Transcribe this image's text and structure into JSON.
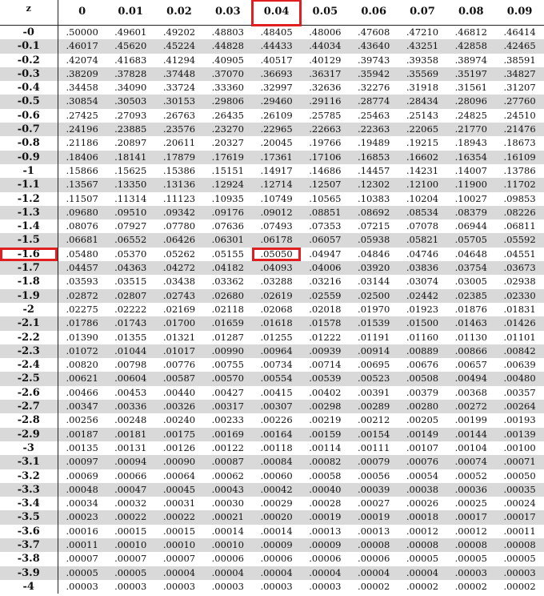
{
  "table": {
    "corner_label": "z",
    "columns": [
      "0",
      "0.01",
      "0.02",
      "0.03",
      "0.04",
      "0.05",
      "0.06",
      "0.07",
      "0.08",
      "0.09"
    ],
    "highlight": {
      "row_z": "-1.6",
      "column": "0.04",
      "value": ".05050",
      "color": "#e02020"
    },
    "shade_color": "#d9d9d9",
    "rows": [
      {
        "z": "-0",
        "values": [
          ".50000",
          ".49601",
          ".49202",
          ".48803",
          ".48405",
          ".48006",
          ".47608",
          ".47210",
          ".46812",
          ".46414"
        ]
      },
      {
        "z": "-0.1",
        "values": [
          ".46017",
          ".45620",
          ".45224",
          ".44828",
          ".44433",
          ".44034",
          ".43640",
          ".43251",
          ".42858",
          ".42465"
        ]
      },
      {
        "z": "-0.2",
        "values": [
          ".42074",
          ".41683",
          ".41294",
          ".40905",
          ".40517",
          ".40129",
          ".39743",
          ".39358",
          ".38974",
          ".38591"
        ]
      },
      {
        "z": "-0.3",
        "values": [
          ".38209",
          ".37828",
          ".37448",
          ".37070",
          ".36693",
          ".36317",
          ".35942",
          ".35569",
          ".35197",
          ".34827"
        ]
      },
      {
        "z": "-0.4",
        "values": [
          ".34458",
          ".34090",
          ".33724",
          ".33360",
          ".32997",
          ".32636",
          ".32276",
          ".31918",
          ".31561",
          ".31207"
        ]
      },
      {
        "z": "-0.5",
        "values": [
          ".30854",
          ".30503",
          ".30153",
          ".29806",
          ".29460",
          ".29116",
          ".28774",
          ".28434",
          ".28096",
          ".27760"
        ]
      },
      {
        "z": "-0.6",
        "values": [
          ".27425",
          ".27093",
          ".26763",
          ".26435",
          ".26109",
          ".25785",
          ".25463",
          ".25143",
          ".24825",
          ".24510"
        ]
      },
      {
        "z": "-0.7",
        "values": [
          ".24196",
          ".23885",
          ".23576",
          ".23270",
          ".22965",
          ".22663",
          ".22363",
          ".22065",
          ".21770",
          ".21476"
        ]
      },
      {
        "z": "-0.8",
        "values": [
          ".21186",
          ".20897",
          ".20611",
          ".20327",
          ".20045",
          ".19766",
          ".19489",
          ".19215",
          ".18943",
          ".18673"
        ]
      },
      {
        "z": "-0.9",
        "values": [
          ".18406",
          ".18141",
          ".17879",
          ".17619",
          ".17361",
          ".17106",
          ".16853",
          ".16602",
          ".16354",
          ".16109"
        ]
      },
      {
        "z": "-1",
        "values": [
          ".15866",
          ".15625",
          ".15386",
          ".15151",
          ".14917",
          ".14686",
          ".14457",
          ".14231",
          ".14007",
          ".13786"
        ]
      },
      {
        "z": "-1.1",
        "values": [
          ".13567",
          ".13350",
          ".13136",
          ".12924",
          ".12714",
          ".12507",
          ".12302",
          ".12100",
          ".11900",
          ".11702"
        ]
      },
      {
        "z": "-1.2",
        "values": [
          ".11507",
          ".11314",
          ".11123",
          ".10935",
          ".10749",
          ".10565",
          ".10383",
          ".10204",
          ".10027",
          ".09853"
        ]
      },
      {
        "z": "-1.3",
        "values": [
          ".09680",
          ".09510",
          ".09342",
          ".09176",
          ".09012",
          ".08851",
          ".08692",
          ".08534",
          ".08379",
          ".08226"
        ]
      },
      {
        "z": "-1.4",
        "values": [
          ".08076",
          ".07927",
          ".07780",
          ".07636",
          ".07493",
          ".07353",
          ".07215",
          ".07078",
          ".06944",
          ".06811"
        ]
      },
      {
        "z": "-1.5",
        "values": [
          ".06681",
          ".06552",
          ".06426",
          ".06301",
          ".06178",
          ".06057",
          ".05938",
          ".05821",
          ".05705",
          ".05592"
        ]
      },
      {
        "z": "-1.6",
        "values": [
          ".05480",
          ".05370",
          ".05262",
          ".05155",
          ".05050",
          ".04947",
          ".04846",
          ".04746",
          ".04648",
          ".04551"
        ]
      },
      {
        "z": "-1.7",
        "values": [
          ".04457",
          ".04363",
          ".04272",
          ".04182",
          ".04093",
          ".04006",
          ".03920",
          ".03836",
          ".03754",
          ".03673"
        ]
      },
      {
        "z": "-1.8",
        "values": [
          ".03593",
          ".03515",
          ".03438",
          ".03362",
          ".03288",
          ".03216",
          ".03144",
          ".03074",
          ".03005",
          ".02938"
        ]
      },
      {
        "z": "-1.9",
        "values": [
          ".02872",
          ".02807",
          ".02743",
          ".02680",
          ".02619",
          ".02559",
          ".02500",
          ".02442",
          ".02385",
          ".02330"
        ]
      },
      {
        "z": "-2",
        "values": [
          ".02275",
          ".02222",
          ".02169",
          ".02118",
          ".02068",
          ".02018",
          ".01970",
          ".01923",
          ".01876",
          ".01831"
        ]
      },
      {
        "z": "-2.1",
        "values": [
          ".01786",
          ".01743",
          ".01700",
          ".01659",
          ".01618",
          ".01578",
          ".01539",
          ".01500",
          ".01463",
          ".01426"
        ]
      },
      {
        "z": "-2.2",
        "values": [
          ".01390",
          ".01355",
          ".01321",
          ".01287",
          ".01255",
          ".01222",
          ".01191",
          ".01160",
          ".01130",
          ".01101"
        ]
      },
      {
        "z": "-2.3",
        "values": [
          ".01072",
          ".01044",
          ".01017",
          ".00990",
          ".00964",
          ".00939",
          ".00914",
          ".00889",
          ".00866",
          ".00842"
        ]
      },
      {
        "z": "-2.4",
        "values": [
          ".00820",
          ".00798",
          ".00776",
          ".00755",
          ".00734",
          ".00714",
          ".00695",
          ".00676",
          ".00657",
          ".00639"
        ]
      },
      {
        "z": "-2.5",
        "values": [
          ".00621",
          ".00604",
          ".00587",
          ".00570",
          ".00554",
          ".00539",
          ".00523",
          ".00508",
          ".00494",
          ".00480"
        ]
      },
      {
        "z": "-2.6",
        "values": [
          ".00466",
          ".00453",
          ".00440",
          ".00427",
          ".00415",
          ".00402",
          ".00391",
          ".00379",
          ".00368",
          ".00357"
        ]
      },
      {
        "z": "-2.7",
        "values": [
          ".00347",
          ".00336",
          ".00326",
          ".00317",
          ".00307",
          ".00298",
          ".00289",
          ".00280",
          ".00272",
          ".00264"
        ]
      },
      {
        "z": "-2.8",
        "values": [
          ".00256",
          ".00248",
          ".00240",
          ".00233",
          ".00226",
          ".00219",
          ".00212",
          ".00205",
          ".00199",
          ".00193"
        ]
      },
      {
        "z": "-2.9",
        "values": [
          ".00187",
          ".00181",
          ".00175",
          ".00169",
          ".00164",
          ".00159",
          ".00154",
          ".00149",
          ".00144",
          ".00139"
        ]
      },
      {
        "z": "-3",
        "values": [
          ".00135",
          ".00131",
          ".00126",
          ".00122",
          ".00118",
          ".00114",
          ".00111",
          ".00107",
          ".00104",
          ".00100"
        ]
      },
      {
        "z": "-3.1",
        "values": [
          ".00097",
          ".00094",
          ".00090",
          ".00087",
          ".00084",
          ".00082",
          ".00079",
          ".00076",
          ".00074",
          ".00071"
        ]
      },
      {
        "z": "-3.2",
        "values": [
          ".00069",
          ".00066",
          ".00064",
          ".00062",
          ".00060",
          ".00058",
          ".00056",
          ".00054",
          ".00052",
          ".00050"
        ]
      },
      {
        "z": "-3.3",
        "values": [
          ".00048",
          ".00047",
          ".00045",
          ".00043",
          ".00042",
          ".00040",
          ".00039",
          ".00038",
          ".00036",
          ".00035"
        ]
      },
      {
        "z": "-3.4",
        "values": [
          ".00034",
          ".00032",
          ".00031",
          ".00030",
          ".00029",
          ".00028",
          ".00027",
          ".00026",
          ".00025",
          ".00024"
        ]
      },
      {
        "z": "-3.5",
        "values": [
          ".00023",
          ".00022",
          ".00022",
          ".00021",
          ".00020",
          ".00019",
          ".00019",
          ".00018",
          ".00017",
          ".00017"
        ]
      },
      {
        "z": "-3.6",
        "values": [
          ".00016",
          ".00015",
          ".00015",
          ".00014",
          ".00014",
          ".00013",
          ".00013",
          ".00012",
          ".00012",
          ".00011"
        ]
      },
      {
        "z": "-3.7",
        "values": [
          ".00011",
          ".00010",
          ".00010",
          ".00010",
          ".00009",
          ".00009",
          ".00008",
          ".00008",
          ".00008",
          ".00008"
        ]
      },
      {
        "z": "-3.8",
        "values": [
          ".00007",
          ".00007",
          ".00007",
          ".00006",
          ".00006",
          ".00006",
          ".00006",
          ".00005",
          ".00005",
          ".00005"
        ]
      },
      {
        "z": "-3.9",
        "values": [
          ".00005",
          ".00005",
          ".00004",
          ".00004",
          ".00004",
          ".00004",
          ".00004",
          ".00004",
          ".00003",
          ".00003"
        ]
      },
      {
        "z": "-4",
        "values": [
          ".00003",
          ".00003",
          ".00003",
          ".00003",
          ".00003",
          ".00003",
          ".00002",
          ".00002",
          ".00002",
          ".00002"
        ]
      }
    ]
  }
}
